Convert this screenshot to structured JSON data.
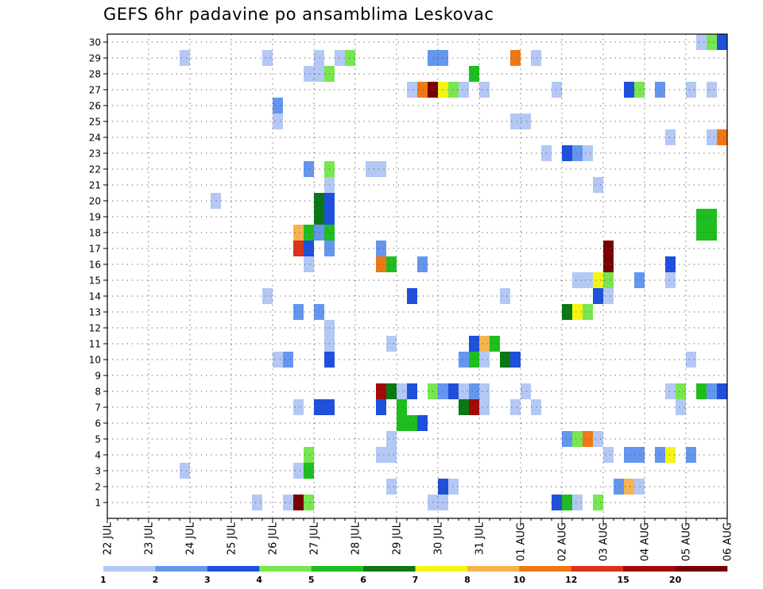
{
  "chart_data": {
    "type": "heatmap",
    "title": "GEFS 6hr padavine po ansamblima Leskovac",
    "xlabel": "",
    "ylabel": "",
    "x_ticks": [
      "22 JUL",
      "23 JUL",
      "24 JUL",
      "25 JUL",
      "26 JUL",
      "27 JUL",
      "28 JUL",
      "29 JUL",
      "30 JUL",
      "31 JUL",
      "01 AUG",
      "02 AUG",
      "03 AUG",
      "04 AUG",
      "05 AUG",
      "06 AUG"
    ],
    "y_ticks": [
      1,
      2,
      3,
      4,
      5,
      6,
      7,
      8,
      9,
      10,
      11,
      12,
      13,
      14,
      15,
      16,
      17,
      18,
      19,
      20,
      21,
      22,
      23,
      24,
      25,
      26,
      27,
      28,
      29,
      30
    ],
    "xlim_steps": [
      0,
      60
    ],
    "ylim": [
      0,
      30.5
    ],
    "grid": true,
    "legend": {
      "position": "bottom",
      "labels": [
        "1",
        "2",
        "3",
        "4",
        "5",
        "6",
        "7",
        "8",
        "10",
        "12",
        "15",
        "20"
      ],
      "colors": [
        "#b4c8f5",
        "#6496f0",
        "#1e50dc",
        "#78e650",
        "#1ebe1e",
        "#0a7814",
        "#f5f514",
        "#f5b450",
        "#f07814",
        "#dc321e",
        "#a00a0a",
        "#780000"
      ]
    },
    "units": "6-hour steps from 22 JUL 00z; y = ensemble member",
    "cells": [
      {
        "m": 1,
        "t": 14.5,
        "c": 0
      },
      {
        "m": 1,
        "t": 17.5,
        "c": 0
      },
      {
        "m": 1,
        "t": 18.5,
        "c": 11
      },
      {
        "m": 1,
        "t": 19.5,
        "c": 3
      },
      {
        "m": 1,
        "t": 31.5,
        "c": 0
      },
      {
        "m": 1,
        "t": 32.5,
        "c": 0
      },
      {
        "m": 1,
        "t": 43.5,
        "c": 2
      },
      {
        "m": 1,
        "t": 44.5,
        "c": 4
      },
      {
        "m": 1,
        "t": 45.5,
        "c": 0
      },
      {
        "m": 1,
        "t": 47.5,
        "c": 3
      },
      {
        "m": 2,
        "t": 27.5,
        "c": 0
      },
      {
        "m": 2,
        "t": 32.5,
        "c": 2
      },
      {
        "m": 2,
        "t": 33.5,
        "c": 0
      },
      {
        "m": 2,
        "t": 49.5,
        "c": 1
      },
      {
        "m": 2,
        "t": 50.5,
        "c": 7
      },
      {
        "m": 2,
        "t": 51.5,
        "c": 0
      },
      {
        "m": 3,
        "t": 7.5,
        "c": 0
      },
      {
        "m": 3,
        "t": 18.5,
        "c": 0
      },
      {
        "m": 3,
        "t": 19.5,
        "c": 4
      },
      {
        "m": 4,
        "t": 19.5,
        "c": 3
      },
      {
        "m": 4,
        "t": 26.5,
        "c": 0
      },
      {
        "m": 4,
        "t": 27.5,
        "c": 0
      },
      {
        "m": 4,
        "t": 48.5,
        "c": 0
      },
      {
        "m": 4,
        "t": 50.5,
        "c": 1
      },
      {
        "m": 4,
        "t": 51.5,
        "c": 1
      },
      {
        "m": 4,
        "t": 53.5,
        "c": 1
      },
      {
        "m": 4,
        "t": 54.5,
        "c": 6
      },
      {
        "m": 4,
        "t": 56.5,
        "c": 1
      },
      {
        "m": 5,
        "t": 27.5,
        "c": 0
      },
      {
        "m": 5,
        "t": 44.5,
        "c": 1
      },
      {
        "m": 5,
        "t": 45.5,
        "c": 3
      },
      {
        "m": 5,
        "t": 46.5,
        "c": 8
      },
      {
        "m": 5,
        "t": 47.5,
        "c": 0
      },
      {
        "m": 6,
        "t": 28.5,
        "c": 4
      },
      {
        "m": 6,
        "t": 29.5,
        "c": 4
      },
      {
        "m": 6,
        "t": 30.5,
        "c": 2
      },
      {
        "m": 7,
        "t": 18.5,
        "c": 0
      },
      {
        "m": 7,
        "t": 20.5,
        "c": 2
      },
      {
        "m": 7,
        "t": 21.5,
        "c": 2
      },
      {
        "m": 7,
        "t": 26.5,
        "c": 2
      },
      {
        "m": 7,
        "t": 28.5,
        "c": 4
      },
      {
        "m": 7,
        "t": 34.5,
        "c": 5
      },
      {
        "m": 7,
        "t": 35.5,
        "c": 10
      },
      {
        "m": 7,
        "t": 36.5,
        "c": 0
      },
      {
        "m": 7,
        "t": 39.5,
        "c": 0
      },
      {
        "m": 7,
        "t": 41.5,
        "c": 0
      },
      {
        "m": 7,
        "t": 55.5,
        "c": 0
      },
      {
        "m": 8,
        "t": 26.5,
        "c": 10
      },
      {
        "m": 8,
        "t": 27.5,
        "c": 5
      },
      {
        "m": 8,
        "t": 28.5,
        "c": 0
      },
      {
        "m": 8,
        "t": 29.5,
        "c": 2
      },
      {
        "m": 8,
        "t": 31.5,
        "c": 3
      },
      {
        "m": 8,
        "t": 32.5,
        "c": 1
      },
      {
        "m": 8,
        "t": 33.5,
        "c": 2
      },
      {
        "m": 8,
        "t": 34.5,
        "c": 0
      },
      {
        "m": 8,
        "t": 35.5,
        "c": 1
      },
      {
        "m": 8,
        "t": 36.5,
        "c": 0
      },
      {
        "m": 8,
        "t": 40.5,
        "c": 0
      },
      {
        "m": 8,
        "t": 54.5,
        "c": 0
      },
      {
        "m": 8,
        "t": 55.5,
        "c": 3
      },
      {
        "m": 8,
        "t": 57.5,
        "c": 4
      },
      {
        "m": 8,
        "t": 58.5,
        "c": 1
      },
      {
        "m": 8,
        "t": 59.5,
        "c": 2
      },
      {
        "m": 10,
        "t": 16.5,
        "c": 0
      },
      {
        "m": 10,
        "t": 17.5,
        "c": 1
      },
      {
        "m": 10,
        "t": 21.5,
        "c": 2
      },
      {
        "m": 10,
        "t": 34.5,
        "c": 1
      },
      {
        "m": 10,
        "t": 35.5,
        "c": 4
      },
      {
        "m": 10,
        "t": 36.5,
        "c": 0
      },
      {
        "m": 10,
        "t": 38.5,
        "c": 5
      },
      {
        "m": 10,
        "t": 39.5,
        "c": 2
      },
      {
        "m": 10,
        "t": 56.5,
        "c": 0
      },
      {
        "m": 11,
        "t": 21.5,
        "c": 0
      },
      {
        "m": 11,
        "t": 27.5,
        "c": 0
      },
      {
        "m": 11,
        "t": 35.5,
        "c": 2
      },
      {
        "m": 11,
        "t": 36.5,
        "c": 7
      },
      {
        "m": 11,
        "t": 37.5,
        "c": 4
      },
      {
        "m": 12,
        "t": 21.5,
        "c": 0
      },
      {
        "m": 13,
        "t": 18.5,
        "c": 1
      },
      {
        "m": 13,
        "t": 20.5,
        "c": 1
      },
      {
        "m": 13,
        "t": 44.5,
        "c": 5
      },
      {
        "m": 13,
        "t": 45.5,
        "c": 6
      },
      {
        "m": 13,
        "t": 46.5,
        "c": 3
      },
      {
        "m": 14,
        "t": 15.5,
        "c": 0
      },
      {
        "m": 14,
        "t": 29.5,
        "c": 2
      },
      {
        "m": 14,
        "t": 38.5,
        "c": 0
      },
      {
        "m": 14,
        "t": 47.5,
        "c": 2
      },
      {
        "m": 14,
        "t": 48.5,
        "c": 0
      },
      {
        "m": 15,
        "t": 45.5,
        "c": 0
      },
      {
        "m": 15,
        "t": 46.5,
        "c": 0
      },
      {
        "m": 15,
        "t": 47.5,
        "c": 6
      },
      {
        "m": 15,
        "t": 48.5,
        "c": 3
      },
      {
        "m": 15,
        "t": 51.5,
        "c": 1
      },
      {
        "m": 15,
        "t": 54.5,
        "c": 0
      },
      {
        "m": 16,
        "t": 19.5,
        "c": 0
      },
      {
        "m": 16,
        "t": 26.5,
        "c": 8
      },
      {
        "m": 16,
        "t": 27.5,
        "c": 4
      },
      {
        "m": 16,
        "t": 30.5,
        "c": 1
      },
      {
        "m": 16,
        "t": 48.5,
        "c": 11
      },
      {
        "m": 16,
        "t": 54.5,
        "c": 2
      },
      {
        "m": 17,
        "t": 18.5,
        "c": 9
      },
      {
        "m": 17,
        "t": 19.5,
        "c": 2
      },
      {
        "m": 17,
        "t": 21.5,
        "c": 1
      },
      {
        "m": 17,
        "t": 26.5,
        "c": 1
      },
      {
        "m": 17,
        "t": 48.5,
        "c": 11
      },
      {
        "m": 18,
        "t": 18.5,
        "c": 7
      },
      {
        "m": 18,
        "t": 19.5,
        "c": 4
      },
      {
        "m": 18,
        "t": 20.5,
        "c": 1
      },
      {
        "m": 18,
        "t": 21.5,
        "c": 4
      },
      {
        "m": 18,
        "t": 57.5,
        "c": 4
      },
      {
        "m": 18,
        "t": 58.5,
        "c": 4
      },
      {
        "m": 19,
        "t": 20.5,
        "c": 5
      },
      {
        "m": 19,
        "t": 21.5,
        "c": 2
      },
      {
        "m": 19,
        "t": 57.5,
        "c": 4
      },
      {
        "m": 19,
        "t": 58.5,
        "c": 4
      },
      {
        "m": 20,
        "t": 10.5,
        "c": 0
      },
      {
        "m": 20,
        "t": 20.5,
        "c": 5
      },
      {
        "m": 20,
        "t": 21.5,
        "c": 2
      },
      {
        "m": 21,
        "t": 21.5,
        "c": 0
      },
      {
        "m": 21,
        "t": 47.5,
        "c": 0
      },
      {
        "m": 22,
        "t": 19.5,
        "c": 1
      },
      {
        "m": 22,
        "t": 21.5,
        "c": 3
      },
      {
        "m": 22,
        "t": 25.5,
        "c": 0
      },
      {
        "m": 22,
        "t": 26.5,
        "c": 0
      },
      {
        "m": 23,
        "t": 42.5,
        "c": 0
      },
      {
        "m": 23,
        "t": 44.5,
        "c": 2
      },
      {
        "m": 23,
        "t": 45.5,
        "c": 1
      },
      {
        "m": 23,
        "t": 46.5,
        "c": 0
      },
      {
        "m": 24,
        "t": 54.5,
        "c": 0
      },
      {
        "m": 24,
        "t": 58.5,
        "c": 0
      },
      {
        "m": 24,
        "t": 59.5,
        "c": 8
      },
      {
        "m": 25,
        "t": 16.5,
        "c": 0
      },
      {
        "m": 25,
        "t": 39.5,
        "c": 0
      },
      {
        "m": 25,
        "t": 40.5,
        "c": 0
      },
      {
        "m": 26,
        "t": 16.5,
        "c": 1
      },
      {
        "m": 27,
        "t": 29.5,
        "c": 0
      },
      {
        "m": 27,
        "t": 30.5,
        "c": 8
      },
      {
        "m": 27,
        "t": 31.5,
        "c": 11
      },
      {
        "m": 27,
        "t": 32.5,
        "c": 6
      },
      {
        "m": 27,
        "t": 33.5,
        "c": 3
      },
      {
        "m": 27,
        "t": 34.5,
        "c": 0
      },
      {
        "m": 27,
        "t": 36.5,
        "c": 0
      },
      {
        "m": 27,
        "t": 43.5,
        "c": 0
      },
      {
        "m": 27,
        "t": 50.5,
        "c": 2
      },
      {
        "m": 27,
        "t": 51.5,
        "c": 3
      },
      {
        "m": 27,
        "t": 53.5,
        "c": 1
      },
      {
        "m": 27,
        "t": 56.5,
        "c": 0
      },
      {
        "m": 27,
        "t": 58.5,
        "c": 0
      },
      {
        "m": 28,
        "t": 19.5,
        "c": 0
      },
      {
        "m": 28,
        "t": 20.5,
        "c": 0
      },
      {
        "m": 28,
        "t": 21.5,
        "c": 3
      },
      {
        "m": 28,
        "t": 35.5,
        "c": 4
      },
      {
        "m": 29,
        "t": 7.5,
        "c": 0
      },
      {
        "m": 29,
        "t": 15.5,
        "c": 0
      },
      {
        "m": 29,
        "t": 20.5,
        "c": 0
      },
      {
        "m": 29,
        "t": 22.5,
        "c": 0
      },
      {
        "m": 29,
        "t": 23.5,
        "c": 3
      },
      {
        "m": 29,
        "t": 31.5,
        "c": 1
      },
      {
        "m": 29,
        "t": 32.5,
        "c": 1
      },
      {
        "m": 29,
        "t": 39.5,
        "c": 8
      },
      {
        "m": 29,
        "t": 41.5,
        "c": 0
      },
      {
        "m": 30,
        "t": 57.5,
        "c": 0
      },
      {
        "m": 30,
        "t": 58.5,
        "c": 3
      },
      {
        "m": 30,
        "t": 59.5,
        "c": 2
      }
    ]
  }
}
